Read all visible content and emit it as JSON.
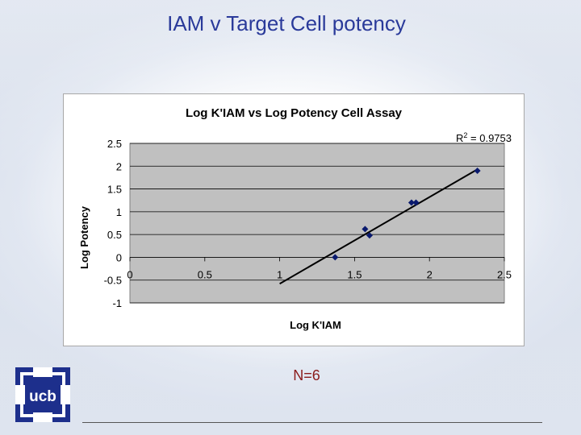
{
  "slide": {
    "title": "IAM v Target Cell potency",
    "note": "N=6",
    "logo_text": "ucb"
  },
  "chart_data": {
    "type": "scatter",
    "title": "Log K'IAM vs Log Potency Cell Assay",
    "xlabel": "Log K'IAM",
    "ylabel": "Log Potency",
    "xlim": [
      0,
      2.5
    ],
    "ylim": [
      -1,
      2.5
    ],
    "xticks": [
      "0",
      "0.5",
      "1",
      "1.5",
      "2",
      "2.5"
    ],
    "yticks": [
      "2.5",
      "2",
      "1.5",
      "1",
      "0.5",
      "0",
      "-0.5",
      "-1"
    ],
    "grid": true,
    "r2_label": "R",
    "r2_sup": "2",
    "r2_value": " = 0.9753",
    "points": [
      {
        "x": 1.37,
        "y": 0.0
      },
      {
        "x": 1.57,
        "y": 0.62
      },
      {
        "x": 1.6,
        "y": 0.48
      },
      {
        "x": 1.88,
        "y": 1.2
      },
      {
        "x": 1.91,
        "y": 1.2
      },
      {
        "x": 2.32,
        "y": 1.9
      }
    ],
    "trendline": {
      "x": [
        1.0,
        2.32
      ],
      "y": [
        -0.58,
        1.93
      ]
    },
    "colors": {
      "plot_bg": "#c0c0c0",
      "marker": "#0a1a6e",
      "line": "#000000"
    }
  }
}
